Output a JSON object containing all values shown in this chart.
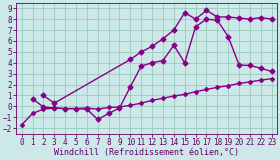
{
  "bg_color": "#cce8e8",
  "grid_color": "#99ccbb",
  "line_color": "#880088",
  "xlim": [
    -0.5,
    23.5
  ],
  "ylim": [
    -2.5,
    9.5
  ],
  "xlabel": "Windchill (Refroidissement éolien,°C)",
  "xticks": [
    0,
    1,
    2,
    3,
    4,
    5,
    6,
    7,
    8,
    9,
    10,
    11,
    12,
    13,
    14,
    15,
    16,
    17,
    18,
    19,
    20,
    21,
    22,
    23
  ],
  "yticks": [
    -2,
    -1,
    0,
    1,
    2,
    3,
    4,
    5,
    6,
    7,
    8,
    9
  ],
  "line1_x": [
    0,
    1,
    2,
    3,
    4,
    5,
    6,
    7,
    8,
    9,
    10,
    11,
    12,
    13,
    14,
    15,
    16,
    17,
    18,
    19,
    20,
    21,
    22,
    23
  ],
  "line1_y": [
    -1.7,
    -0.65,
    -0.25,
    -0.15,
    -0.2,
    -0.2,
    -0.15,
    -0.25,
    -0.1,
    -0.05,
    0.1,
    0.3,
    0.55,
    0.75,
    0.95,
    1.1,
    1.35,
    1.55,
    1.75,
    1.9,
    2.1,
    2.25,
    2.4,
    2.55
  ],
  "line2_x": [
    1,
    2,
    3,
    4,
    5,
    6,
    7,
    8,
    9,
    10,
    11,
    12,
    13,
    14,
    15,
    16,
    17,
    18,
    19,
    20,
    21,
    22,
    23
  ],
  "line2_y": [
    0.7,
    -0.05,
    -0.15,
    -0.2,
    -0.2,
    -0.25,
    -1.2,
    -0.65,
    -0.15,
    1.8,
    3.7,
    4.0,
    4.2,
    5.6,
    4.0,
    7.3,
    8.0,
    7.9,
    6.4,
    3.8,
    3.75,
    3.5,
    3.2
  ],
  "line3_x": [
    2,
    3,
    10,
    11,
    12,
    13,
    14,
    15,
    16,
    17,
    18,
    19,
    20,
    21,
    22,
    23
  ],
  "line3_y": [
    1.0,
    0.3,
    4.3,
    5.0,
    5.5,
    6.2,
    7.0,
    8.6,
    8.0,
    8.8,
    8.2,
    8.2,
    8.1,
    8.0,
    8.15,
    8.0
  ],
  "marker": "D",
  "markersize": 2.5,
  "linewidth": 1.0,
  "xlabel_fontsize": 6,
  "tick_fontsize": 5.5,
  "tick_color": "#660066",
  "spine_color": "#660066"
}
